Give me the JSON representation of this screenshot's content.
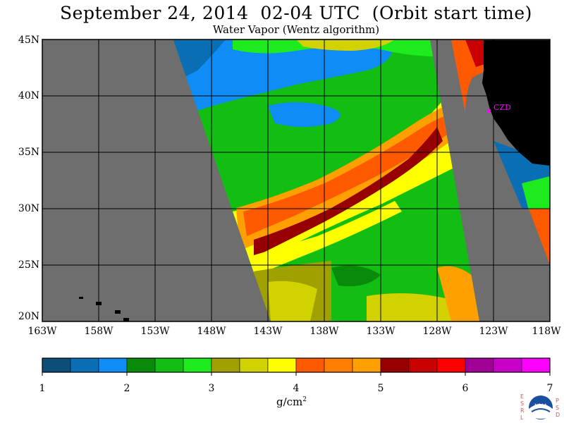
{
  "header": {
    "title": "September 24, 2014  02-04 UTC  (Orbit start time)",
    "subtitle": "Water Vapor (Wentz algorithm)"
  },
  "map": {
    "lat_labels": [
      "45N",
      "40N",
      "35N",
      "30N",
      "25N",
      "20N"
    ],
    "lon_labels": [
      "163W",
      "158W",
      "153W",
      "148W",
      "143W",
      "138W",
      "133W",
      "128W",
      "123W",
      "118W"
    ],
    "station_label": "CZD",
    "colors": {
      "no_data": "#6e6e6e",
      "land": "#000000",
      "grid": "#000000"
    }
  },
  "colorbar": {
    "ticks": [
      "1",
      "2",
      "3",
      "4",
      "5",
      "6",
      "7"
    ],
    "unit_base": "g/cm",
    "unit_exp": "2",
    "colors": [
      "#0b4f78",
      "#0a6eb4",
      "#0f8cf5",
      "#0a8a0a",
      "#12be12",
      "#1eeb1e",
      "#a0a000",
      "#d2d200",
      "#ffff00",
      "#ff5a00",
      "#ff7d00",
      "#ffa000",
      "#960000",
      "#c80000",
      "#ff0000",
      "#a00096",
      "#c800c8",
      "#ff00ff"
    ]
  },
  "logo": {
    "left_letters": [
      "E",
      "S",
      "R",
      "L"
    ],
    "right_letters": [
      "P",
      "S",
      "D"
    ],
    "text": "NOAA"
  }
}
